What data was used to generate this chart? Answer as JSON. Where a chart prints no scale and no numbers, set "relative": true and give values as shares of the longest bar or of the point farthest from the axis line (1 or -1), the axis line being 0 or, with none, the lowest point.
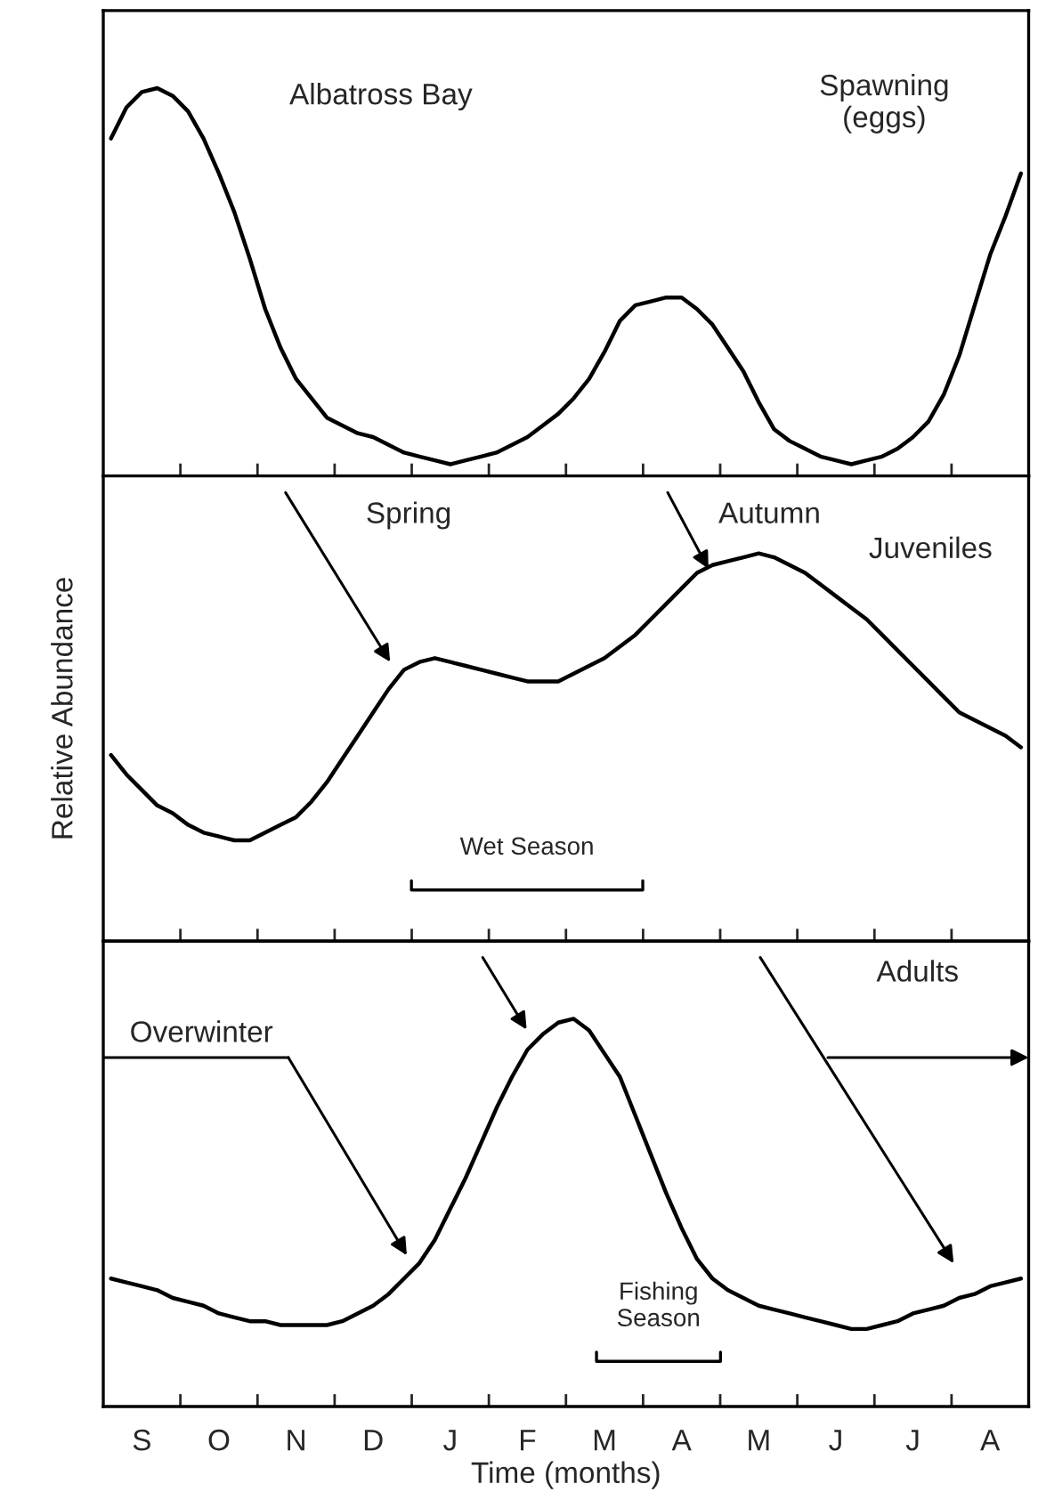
{
  "chart_data": [
    {
      "type": "line",
      "relative": true,
      "categories": [
        null,
        null,
        null,
        null,
        null,
        null,
        null,
        null,
        null,
        null,
        null,
        null,
        null,
        null,
        null,
        null,
        null,
        null,
        null,
        null,
        null,
        null,
        null,
        null,
        null,
        null,
        null,
        null,
        null,
        null,
        null,
        null,
        null,
        null,
        null,
        null,
        null,
        null,
        null,
        null,
        null,
        null,
        null,
        null,
        null,
        null,
        null,
        null,
        null,
        null,
        null,
        null,
        null,
        null,
        null,
        null,
        null,
        null,
        null,
        null
      ],
      "annotations": [
        "Albatross Bay",
        "Spawning\n(eggs)"
      ],
      "series": [
        {
          "color": "#000000",
          "values": [
            0.87,
            0.95,
            0.99,
            1.0,
            0.98,
            0.94,
            0.87,
            0.78,
            0.68,
            0.56,
            0.43,
            0.33,
            0.25,
            0.2,
            0.15,
            0.13,
            0.11,
            0.1,
            0.08,
            0.06,
            0.05,
            0.04,
            0.03,
            0.04,
            0.05,
            0.06,
            0.08,
            0.1,
            0.13,
            0.16,
            0.2,
            0.25,
            0.32,
            0.4,
            0.44,
            0.45,
            0.46,
            0.46,
            0.43,
            0.39,
            0.33,
            0.27,
            0.19,
            0.12,
            0.09,
            0.07,
            0.05,
            0.04,
            0.03,
            0.04,
            0.05,
            0.07,
            0.1,
            0.14,
            0.21,
            0.31,
            0.44,
            0.57,
            0.67,
            0.78
          ]
        }
      ]
    },
    {
      "type": "line",
      "relative": true,
      "ylabel": "Relative Abundance",
      "categories": [
        null,
        null,
        null,
        null,
        null,
        null,
        null,
        null,
        null,
        null,
        null,
        null,
        null,
        null,
        null,
        null,
        null,
        null,
        null,
        null,
        null,
        null,
        null,
        null,
        null,
        null,
        null,
        null,
        null,
        null,
        null,
        null,
        null,
        null,
        null,
        null,
        null,
        null,
        null,
        null,
        null,
        null,
        null,
        null,
        null,
        null,
        null,
        null,
        null,
        null,
        null,
        null,
        null,
        null,
        null,
        null,
        null,
        null,
        null,
        null
      ],
      "annotations": [
        "Spring",
        "Autumn",
        "Juveniles",
        "Wet Season"
      ],
      "series": [
        {
          "color": "#000000",
          "values": [
            0.48,
            0.43,
            0.39,
            0.35,
            0.33,
            0.3,
            0.28,
            0.27,
            0.26,
            0.26,
            0.28,
            0.3,
            0.32,
            0.36,
            0.41,
            0.47,
            0.53,
            0.59,
            0.65,
            0.7,
            0.72,
            0.73,
            0.72,
            0.71,
            0.7,
            0.69,
            0.68,
            0.67,
            0.67,
            0.67,
            0.69,
            0.71,
            0.73,
            0.76,
            0.79,
            0.83,
            0.87,
            0.91,
            0.95,
            0.97,
            0.98,
            0.99,
            1.0,
            0.99,
            0.97,
            0.95,
            0.92,
            0.89,
            0.86,
            0.83,
            0.79,
            0.75,
            0.71,
            0.67,
            0.63,
            0.59,
            0.57,
            0.55,
            0.53,
            0.5
          ]
        }
      ]
    },
    {
      "type": "line",
      "relative": true,
      "xlabel": "Time (months)",
      "categories": [
        null,
        null,
        "S",
        null,
        null,
        null,
        null,
        "O",
        null,
        null,
        null,
        null,
        "N",
        null,
        null,
        null,
        null,
        "D",
        null,
        null,
        null,
        null,
        "J",
        null,
        null,
        null,
        null,
        "F",
        null,
        null,
        null,
        null,
        "M",
        null,
        null,
        null,
        null,
        "A",
        null,
        null,
        null,
        null,
        "M",
        null,
        null,
        null,
        null,
        "J",
        null,
        null,
        null,
        null,
        "J",
        null,
        null,
        null,
        null,
        "A",
        null,
        null
      ],
      "annotations": [
        "Overwinter",
        "Adults",
        "Fishing\nSeason"
      ],
      "series": [
        {
          "color": "#000000",
          "values": [
            0.33,
            0.32,
            0.31,
            0.3,
            0.28,
            0.27,
            0.26,
            0.24,
            0.23,
            0.22,
            0.22,
            0.21,
            0.21,
            0.21,
            0.21,
            0.22,
            0.24,
            0.26,
            0.29,
            0.33,
            0.37,
            0.43,
            0.51,
            0.59,
            0.68,
            0.77,
            0.85,
            0.92,
            0.96,
            0.99,
            1.0,
            0.97,
            0.91,
            0.85,
            0.75,
            0.65,
            0.55,
            0.46,
            0.38,
            0.33,
            0.3,
            0.28,
            0.26,
            0.25,
            0.24,
            0.23,
            0.22,
            0.21,
            0.2,
            0.2,
            0.21,
            0.22,
            0.24,
            0.25,
            0.26,
            0.28,
            0.29,
            0.31,
            0.32,
            0.33
          ]
        }
      ]
    }
  ]
}
